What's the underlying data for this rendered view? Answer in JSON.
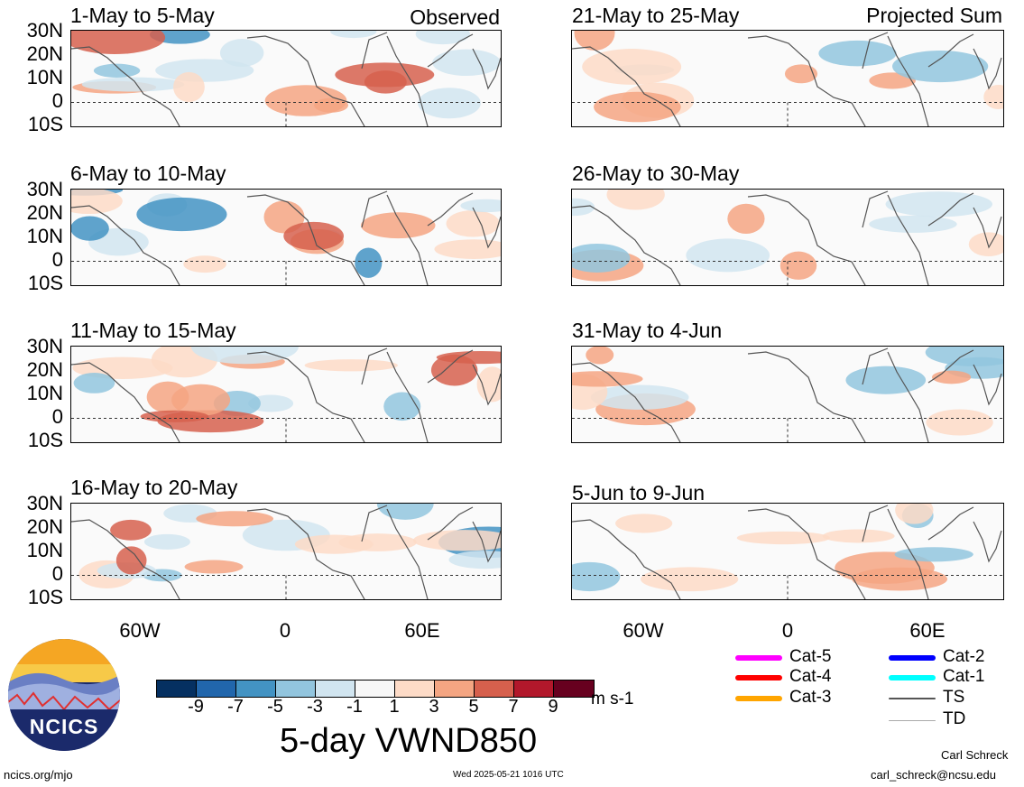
{
  "panels": [
    {
      "title": "1-May to 5-May",
      "label": "Observed"
    },
    {
      "title": "6-May to 10-May",
      "label": ""
    },
    {
      "title": "11-May to 15-May",
      "label": ""
    },
    {
      "title": "16-May to 20-May",
      "label": ""
    },
    {
      "title": "21-May to 25-May",
      "label": "Projected Sum"
    },
    {
      "title": "26-May to 30-May",
      "label": ""
    },
    {
      "title": "31-May to 4-Jun",
      "label": ""
    },
    {
      "title": "5-Jun to 9-Jun",
      "label": ""
    }
  ],
  "lat_labels": [
    "30N",
    "20N",
    "10N",
    "0",
    "10S"
  ],
  "lon_labels": [
    "60W",
    "0",
    "60E"
  ],
  "colorbar": {
    "colors": [
      "#053061",
      "#2166ac",
      "#4393c3",
      "#92c5de",
      "#d1e5f0",
      "#f7f7f7",
      "#fddbc7",
      "#f4a582",
      "#d6604d",
      "#b2182b",
      "#67001f"
    ],
    "ticks": [
      "-9",
      "-7",
      "-5",
      "-3",
      "-1",
      "1",
      "3",
      "5",
      "7",
      "9"
    ],
    "unit": "m s-1"
  },
  "title": "5-day VWND850",
  "legend": [
    {
      "label": "Cat-5",
      "color": "#ff00ff"
    },
    {
      "label": "Cat-4",
      "color": "#ff0000"
    },
    {
      "label": "Cat-3",
      "color": "#ffa500"
    },
    {
      "label": "Cat-2",
      "color": "#0000ff"
    },
    {
      "label": "Cat-1",
      "color": "#00ffff"
    },
    {
      "label": "TS",
      "color": "#555555"
    },
    {
      "label": "TD",
      "color": "#aaaaaa"
    }
  ],
  "logo_text": "NCICS",
  "footer": {
    "url": "ncics.org/mjo",
    "timestamp": "Wed 2025-05-21 1016 UTC",
    "author": "Carl Schreck",
    "email": "carl_schreck@ncsu.edu"
  }
}
